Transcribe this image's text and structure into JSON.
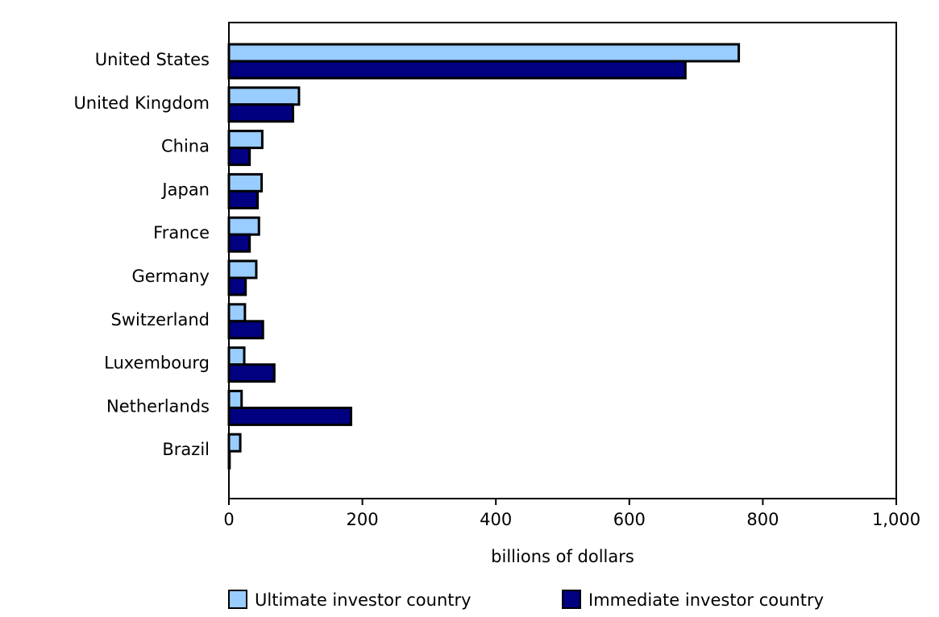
{
  "chart_data": {
    "type": "bar",
    "orientation": "horizontal",
    "categories": [
      "United States",
      "United Kingdom",
      "China",
      "Japan",
      "France",
      "Germany",
      "Switzerland",
      "Luxembourg",
      "Netherlands",
      "Brazil"
    ],
    "series": [
      {
        "name": "Ultimate investor country",
        "color": "#99ccff",
        "values": [
          764,
          105,
          50,
          49,
          45,
          41,
          24,
          23,
          19,
          17
        ]
      },
      {
        "name": "Immediate investor country",
        "color": "#000080",
        "values": [
          684,
          96,
          31,
          43,
          31,
          25,
          51,
          68,
          183,
          1
        ]
      }
    ],
    "xlabel": "billions of dollars",
    "ylabel": "",
    "xlim": [
      0,
      1000
    ],
    "xticks": [
      0,
      200,
      400,
      600,
      800,
      1000
    ],
    "xtick_labels": [
      "0",
      "200",
      "400",
      "600",
      "800",
      "1,000"
    ],
    "grid": false,
    "legend_position": "bottom"
  }
}
